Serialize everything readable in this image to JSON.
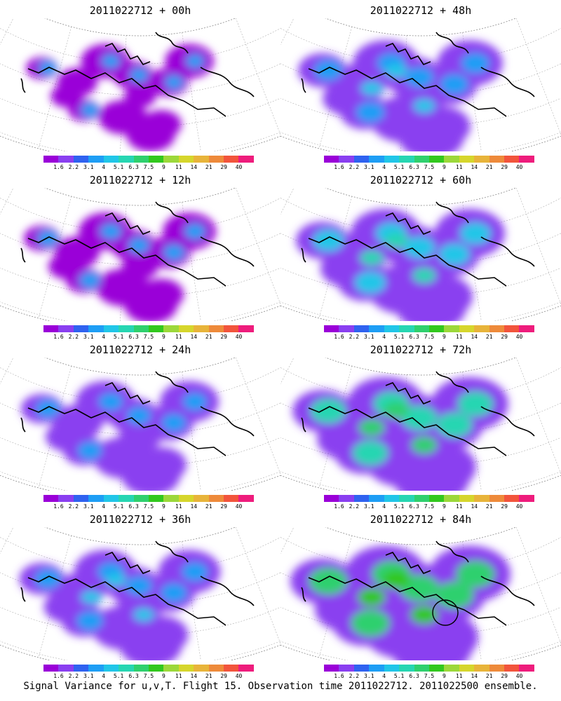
{
  "caption": "Signal Variance for u,v,T. Flight 15. Observation time 2011022712. 2011022500 ensemble.",
  "colorbar": {
    "labels": [
      "1.6",
      "2.2",
      "3.1",
      "4",
      "5.1",
      "6.3",
      "7.5",
      "9",
      "11",
      "14",
      "21",
      "29",
      "40"
    ],
    "colors": [
      "#9a00d8",
      "#8a3ff0",
      "#2f62f0",
      "#1e9ef5",
      "#21c6e8",
      "#27d6b2",
      "#2fd06e",
      "#32c81e",
      "#9cd83a",
      "#d6d62c",
      "#e8b43a",
      "#ee8a3a",
      "#f2543c",
      "#ee1c7c"
    ]
  },
  "panels": [
    {
      "title": "2011022712 + 00h",
      "intensity": 0.12
    },
    {
      "title": "2011022712 + 48h",
      "intensity": 0.42
    },
    {
      "title": "2011022712 + 12h",
      "intensity": 0.2
    },
    {
      "title": "2011022712 + 60h",
      "intensity": 0.5
    },
    {
      "title": "2011022712 + 24h",
      "intensity": 0.3
    },
    {
      "title": "2011022712 + 72h",
      "intensity": 0.62
    },
    {
      "title": "2011022712 + 36h",
      "intensity": 0.36
    },
    {
      "title": "2011022712 + 84h",
      "intensity": 0.7
    }
  ]
}
